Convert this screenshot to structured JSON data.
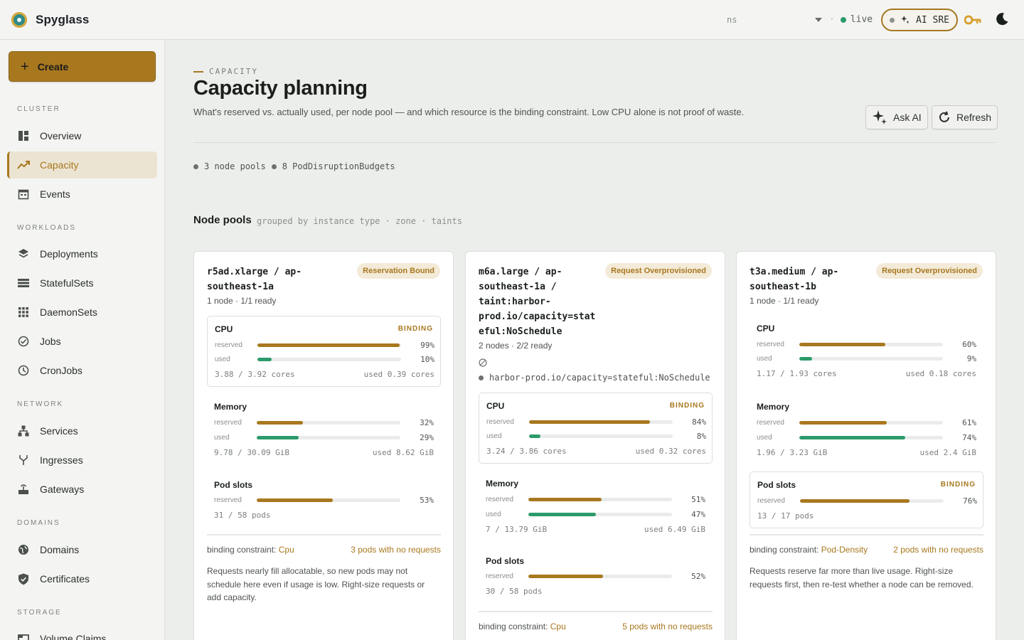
{
  "app": {
    "name": "Spyglass",
    "namespace_placeholder": "ns",
    "live_label": "live",
    "ai_sre_label": "AI SRE",
    "colors": {
      "accent": "#a8781f",
      "used": "#2b9a6a",
      "live": "#2b9a6a"
    }
  },
  "sidebar": {
    "create_label": "Create",
    "sections": {
      "cluster": "CLUSTER",
      "workloads": "WORKLOADS",
      "network": "NETWORK",
      "domains": "DOMAINS",
      "storage": "STORAGE"
    },
    "items": {
      "overview": "Overview",
      "capacity": "Capacity",
      "events": "Events",
      "deployments": "Deployments",
      "statefulsets": "StatefulSets",
      "daemonsets": "DaemonSets",
      "jobs": "Jobs",
      "cronjobs": "CronJobs",
      "services": "Services",
      "ingresses": "Ingresses",
      "gateways": "Gateways",
      "domains": "Domains",
      "certificates": "Certificates",
      "volume_claims": "Volume Claims"
    }
  },
  "header": {
    "eyebrow": "CAPACITY",
    "title": "Capacity planning",
    "description": "What's reserved vs. actually used, per node pool — and which resource is the binding constraint. Low CPU alone is not proof of waste.",
    "ask_ai_label": "Ask AI",
    "refresh_label": "Refresh"
  },
  "summary": {
    "node_pools": "3 node pools",
    "pdbs": "8 PodDisruptionBudgets"
  },
  "pools_section": {
    "title": "Node pools",
    "subtitle": "grouped by instance type · zone · taints"
  },
  "pools": [
    {
      "title_line1": "r5ad.xlarge / ap-",
      "title_line2": "southeast-1a",
      "badge": "Reservation Bound",
      "meta": "1 node · 1/1 ready",
      "cpu": {
        "name": "CPU",
        "flag": "BINDING",
        "reserved_label": "reserved",
        "used_label": "used",
        "reserved_pct": 99,
        "used_pct": 10,
        "reserved_text": "99%",
        "used_text": "10%",
        "totals": "3.88 / 3.92 cores",
        "used_total": "used 0.39 cores"
      },
      "memory": {
        "name": "Memory",
        "reserved_label": "reserved",
        "used_label": "used",
        "reserved_pct": 32,
        "used_pct": 29,
        "reserved_text": "32%",
        "used_text": "29%",
        "totals": "9.78 / 30.09 GiB",
        "used_total": "used 8.62 GiB"
      },
      "pods": {
        "name": "Pod slots",
        "reserved_label": "reserved",
        "reserved_pct": 53,
        "reserved_text": "53%",
        "totals": "31 / 58 pods"
      },
      "constraint_label": "binding constraint:",
      "constraint_value": "Cpu",
      "no_requests": "3 pods with no requests",
      "advice": "Requests nearly fill allocatable, so new pods may not schedule here even if usage is low. Right-size requests or add capacity."
    },
    {
      "title_line1": "m6a.large / ap-",
      "title_line2": "southeast-1a /",
      "title_line3": "taint:harbor-",
      "title_line4": "prod.io/capacity=stat",
      "title_line5": "eful:NoSchedule",
      "badge": "Request Overprovisioned",
      "meta": "2 nodes · 2/2 ready",
      "taint": "harbor-prod.io/capacity=stateful:NoSchedule",
      "cpu": {
        "name": "CPU",
        "flag": "BINDING",
        "reserved_label": "reserved",
        "used_label": "used",
        "reserved_pct": 84,
        "used_pct": 8,
        "reserved_text": "84%",
        "used_text": "8%",
        "totals": "3.24 / 3.86 cores",
        "used_total": "used 0.32 cores"
      },
      "memory": {
        "name": "Memory",
        "reserved_label": "reserved",
        "used_label": "used",
        "reserved_pct": 51,
        "used_pct": 47,
        "reserved_text": "51%",
        "used_text": "47%",
        "totals": "7 / 13.79 GiB",
        "used_total": "used 6.49 GiB"
      },
      "pods": {
        "name": "Pod slots",
        "reserved_label": "reserved",
        "reserved_pct": 52,
        "reserved_text": "52%",
        "totals": "30 / 58 pods"
      },
      "constraint_label": "binding constraint:",
      "constraint_value": "Cpu",
      "no_requests": "5 pods with no requests"
    },
    {
      "title_line1": "t3a.medium / ap-",
      "title_line2": "southeast-1b",
      "badge": "Request Overprovisioned",
      "meta": "1 node · 1/1 ready",
      "cpu": {
        "name": "CPU",
        "reserved_label": "reserved",
        "used_label": "used",
        "reserved_pct": 60,
        "used_pct": 9,
        "reserved_text": "60%",
        "used_text": "9%",
        "totals": "1.17 / 1.93 cores",
        "used_total": "used 0.18 cores"
      },
      "memory": {
        "name": "Memory",
        "reserved_label": "reserved",
        "used_label": "used",
        "reserved_pct": 61,
        "used_pct": 74,
        "reserved_text": "61%",
        "used_text": "74%",
        "totals": "1.96 / 3.23 GiB",
        "used_total": "used 2.4 GiB"
      },
      "pods": {
        "name": "Pod slots",
        "flag": "BINDING",
        "reserved_label": "reserved",
        "reserved_pct": 76,
        "reserved_text": "76%",
        "totals": "13 / 17 pods"
      },
      "constraint_label": "binding constraint:",
      "constraint_value": "Pod-Density",
      "no_requests": "2 pods with no requests",
      "advice": "Requests reserve far more than live usage. Right-size requests first, then re-test whether a node can be removed."
    }
  ]
}
